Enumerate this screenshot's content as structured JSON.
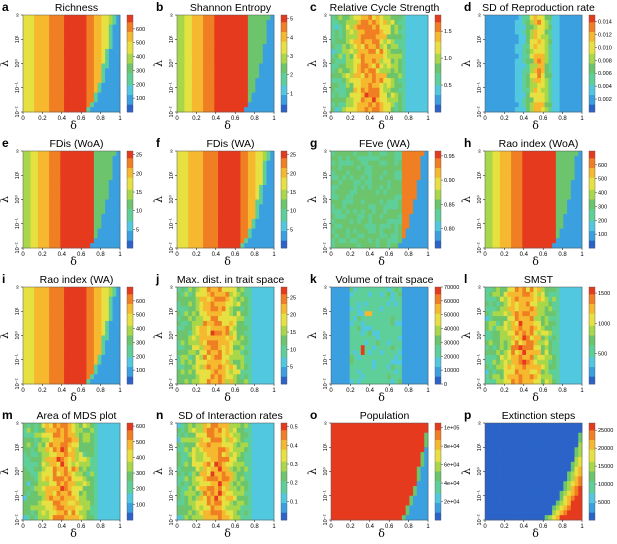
{
  "figure": {
    "xlabel": "δ",
    "ylabel": "λ",
    "x_ticks": [
      "0",
      "0.2",
      "0.4",
      "0.6",
      "0.8",
      "1"
    ],
    "y_ticks": [
      "10⁻²",
      "10⁻¹",
      "10⁰",
      "10¹",
      "∞"
    ]
  },
  "colormap": [
    "#2b63c8",
    "#3aa0e0",
    "#52c8e0",
    "#5fcf9a",
    "#6cc46c",
    "#a8d84a",
    "#e6e040",
    "#f5b82e",
    "#f07e22",
    "#e63a1e"
  ],
  "chart_data": [
    {
      "id": "a",
      "type": "heatmap",
      "title": "Richness",
      "colorbar_ticks": [
        "100",
        "200",
        "300",
        "400",
        "500",
        "600"
      ],
      "range": [
        0,
        700
      ],
      "pattern": "corner"
    },
    {
      "id": "b",
      "type": "heatmap",
      "title": "Shannon Entropy",
      "colorbar_ticks": [
        "1",
        "2",
        "3",
        "4",
        "5"
      ],
      "range": [
        0,
        5.2
      ],
      "pattern": "corner-flat"
    },
    {
      "id": "c",
      "type": "heatmap",
      "title": "Relative Cycle Strength",
      "colorbar_ticks": [
        "0.5",
        "1.0",
        "1.5"
      ],
      "range": [
        0,
        1.8
      ],
      "pattern": "band-noisy"
    },
    {
      "id": "d",
      "type": "heatmap",
      "title": "SD of Reproduction rate",
      "colorbar_ticks": [
        "0.002",
        "0.004",
        "0.006",
        "0.008",
        "0.010",
        "0.012",
        "0.014"
      ],
      "range": [
        0,
        0.015
      ],
      "pattern": "band-narrow"
    },
    {
      "id": "e",
      "type": "heatmap",
      "title": "FDis (WoA)",
      "colorbar_ticks": [
        "5",
        "10",
        "15",
        "20",
        "25"
      ],
      "range": [
        0,
        26
      ],
      "pattern": "corner-flat"
    },
    {
      "id": "f",
      "type": "heatmap",
      "title": "FDis (WA)",
      "colorbar_ticks": [
        "5",
        "10",
        "15",
        "20",
        "25"
      ],
      "range": [
        0,
        26
      ],
      "pattern": "corner"
    },
    {
      "id": "g",
      "type": "heatmap",
      "title": "FEve (WA)",
      "colorbar_ticks": [
        "0.80",
        "0.85",
        "0.90",
        "0.95"
      ],
      "range": [
        0.76,
        0.96
      ],
      "pattern": "feve"
    },
    {
      "id": "h",
      "type": "heatmap",
      "title": "Rao index (WoA)",
      "colorbar_ticks": [
        "100",
        "200",
        "300",
        "400",
        "500",
        "600"
      ],
      "range": [
        0,
        700
      ],
      "pattern": "corner-flat"
    },
    {
      "id": "i",
      "type": "heatmap",
      "title": "Rao index (WA)",
      "colorbar_ticks": [
        "100",
        "200",
        "300",
        "400",
        "500",
        "600"
      ],
      "range": [
        0,
        700
      ],
      "pattern": "corner"
    },
    {
      "id": "j",
      "type": "heatmap",
      "title": "Max. dist. in trait space",
      "colorbar_ticks": [
        "5",
        "10",
        "15",
        "20",
        "25"
      ],
      "range": [
        0,
        28
      ],
      "pattern": "band-noisy"
    },
    {
      "id": "k",
      "type": "heatmap",
      "title": "Volume of trait space",
      "colorbar_ticks": [
        "0",
        "10000",
        "20000",
        "30000",
        "40000",
        "50000",
        "60000",
        "70000"
      ],
      "range": [
        0,
        70000
      ],
      "pattern": "volume"
    },
    {
      "id": "l",
      "type": "heatmap",
      "title": "SMST",
      "colorbar_ticks": [
        "500",
        "1000",
        "1500"
      ],
      "range": [
        0,
        1600
      ],
      "pattern": "band-noisy"
    },
    {
      "id": "m",
      "type": "heatmap",
      "title": "Area of MDS plot",
      "colorbar_ticks": [
        "100",
        "200",
        "300",
        "400",
        "500",
        "600"
      ],
      "range": [
        0,
        620
      ],
      "pattern": "band-noisy"
    },
    {
      "id": "n",
      "type": "heatmap",
      "title": "SD of Interaction rates",
      "colorbar_ticks": [
        "0.1",
        "0.2",
        "0.3",
        "0.4",
        "0.5"
      ],
      "range": [
        0,
        0.52
      ],
      "pattern": "band-noisy"
    },
    {
      "id": "o",
      "type": "heatmap",
      "title": "Population",
      "colorbar_ticks": [
        "2e+04",
        "4e+04",
        "6e+04",
        "8e+04",
        "1e+05"
      ],
      "range": [
        0,
        105000
      ],
      "pattern": "population"
    },
    {
      "id": "p",
      "type": "heatmap",
      "title": "Extinction steps",
      "colorbar_ticks": [
        "5000",
        "10000",
        "15000",
        "20000",
        "25000"
      ],
      "range": [
        0,
        27000
      ],
      "pattern": "extinction"
    }
  ]
}
